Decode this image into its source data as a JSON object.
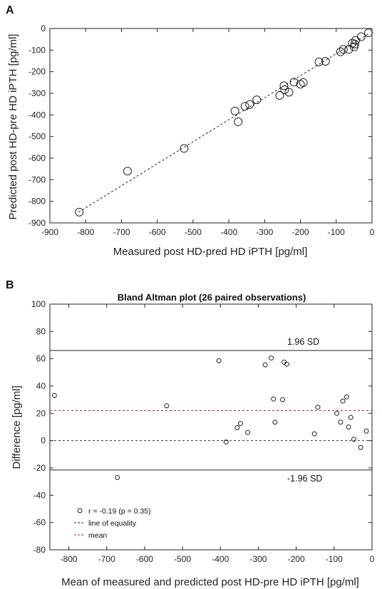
{
  "panels": {
    "a_label": "A",
    "b_label": "B"
  },
  "chart_data": [
    {
      "type": "scatter",
      "panel": "A",
      "title": "",
      "xlabel": "Measured post HD-pred HD iPTH [pg/ml]",
      "ylabel": "Predicted post HD-pre HD iPTH [pg/ml]",
      "xlim": [
        -900,
        0
      ],
      "ylim": [
        -900,
        0
      ],
      "xticks": [
        -900,
        -800,
        -700,
        -600,
        -500,
        -400,
        -300,
        -200,
        -100,
        0
      ],
      "yticks": [
        0,
        -100,
        -200,
        -300,
        -400,
        -500,
        -600,
        -700,
        -800,
        -900
      ],
      "fit_line": {
        "x": [
          -820,
          -10
        ],
        "y": [
          -850,
          -25
        ]
      },
      "points": [
        {
          "x": -818,
          "y": -850
        },
        {
          "x": -683,
          "y": -660
        },
        {
          "x": -525,
          "y": -555
        },
        {
          "x": -383,
          "y": -382
        },
        {
          "x": -374,
          "y": -432
        },
        {
          "x": -355,
          "y": -360
        },
        {
          "x": -342,
          "y": -352
        },
        {
          "x": -322,
          "y": -330
        },
        {
          "x": -258,
          "y": -310
        },
        {
          "x": -246,
          "y": -265
        },
        {
          "x": -244,
          "y": -283
        },
        {
          "x": -232,
          "y": -295
        },
        {
          "x": -218,
          "y": -248
        },
        {
          "x": -200,
          "y": -258
        },
        {
          "x": -192,
          "y": -250
        },
        {
          "x": -148,
          "y": -155
        },
        {
          "x": -130,
          "y": -152
        },
        {
          "x": -88,
          "y": -108
        },
        {
          "x": -80,
          "y": -97
        },
        {
          "x": -65,
          "y": -97
        },
        {
          "x": -55,
          "y": -68
        },
        {
          "x": -50,
          "y": -85
        },
        {
          "x": -48,
          "y": -72
        },
        {
          "x": -46,
          "y": -55
        },
        {
          "x": -30,
          "y": -38
        },
        {
          "x": -10,
          "y": -20
        }
      ]
    },
    {
      "type": "scatter",
      "panel": "B",
      "title": "Bland Altman plot (26 paired observations)",
      "xlabel": "Mean of measured and predicted post HD-pre HD iPTH [pg/ml]",
      "ylabel": "Difference [pg/ml]",
      "xlim": [
        -850,
        0
      ],
      "ylim": [
        -80,
        100
      ],
      "xticks": [
        -800,
        -700,
        -600,
        -500,
        -400,
        -300,
        -200,
        -100,
        0
      ],
      "yticks": [
        100,
        80,
        60,
        40,
        20,
        0,
        -20,
        -40,
        -60,
        -80
      ],
      "hlines": [
        {
          "y": 66,
          "style": "solid",
          "color": "#222222",
          "label": "1.96 SD"
        },
        {
          "y": -21.5,
          "style": "solid",
          "color": "#222222",
          "label": "-1.96 SD"
        },
        {
          "y": 22,
          "style": "dashed",
          "color": "#cc2222"
        },
        {
          "y": 0,
          "style": "dashed",
          "color": "#333333"
        }
      ],
      "points": [
        {
          "x": -838,
          "y": 33
        },
        {
          "x": -672,
          "y": -27
        },
        {
          "x": -542,
          "y": 25.5
        },
        {
          "x": -404,
          "y": 58.5
        },
        {
          "x": -385,
          "y": -1
        },
        {
          "x": -356,
          "y": 9.5
        },
        {
          "x": -347,
          "y": 12.5
        },
        {
          "x": -328,
          "y": 6
        },
        {
          "x": -282,
          "y": 55.5
        },
        {
          "x": -266,
          "y": 60.5
        },
        {
          "x": -260,
          "y": 30.5
        },
        {
          "x": -256,
          "y": 13.5
        },
        {
          "x": -236,
          "y": 30
        },
        {
          "x": -232,
          "y": 57.5
        },
        {
          "x": -225,
          "y": 56
        },
        {
          "x": -152,
          "y": 5
        },
        {
          "x": -143,
          "y": 24.5
        },
        {
          "x": -93,
          "y": 20
        },
        {
          "x": -83,
          "y": 13.5
        },
        {
          "x": -77,
          "y": 29
        },
        {
          "x": -67,
          "y": 32
        },
        {
          "x": -62,
          "y": 10
        },
        {
          "x": -56,
          "y": 17
        },
        {
          "x": -48,
          "y": 1
        },
        {
          "x": -30,
          "y": -5
        },
        {
          "x": -15,
          "y": 7
        }
      ],
      "legend": {
        "placement": "bottom-left",
        "entries": [
          {
            "label": "r = -0.19 (p = 0.35)",
            "marker": "circle"
          },
          {
            "label": "line of equality",
            "marker": "dashed",
            "color": "#333333"
          },
          {
            "label": "mean",
            "marker": "dashed",
            "color": "#cc2222"
          }
        ]
      }
    }
  ]
}
